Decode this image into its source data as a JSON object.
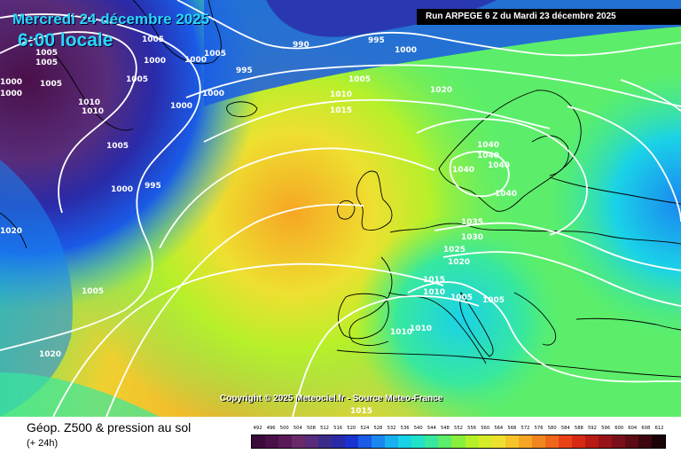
{
  "header": {
    "date": "Mercredi 24 décembre 2025",
    "time": "6:00 locale",
    "run": "Run ARPEGE 6 Z du Mardi 23 décembre 2025"
  },
  "copyright": "Copyright © 2025 Meteociel.fr - Source Meteo-France",
  "legend": {
    "title": "Géop. Z500 & pression au sol",
    "subtitle": "(+ 24h)",
    "scale_values": [
      "492",
      "496",
      "500",
      "504",
      "508",
      "512",
      "516",
      "520",
      "524",
      "528",
      "532",
      "536",
      "540",
      "544",
      "548",
      "552",
      "556",
      "560",
      "564",
      "568",
      "572",
      "576",
      "580",
      "584",
      "588",
      "592",
      "596",
      "600",
      "604",
      "608",
      "612"
    ],
    "scale_colors": [
      "#3a0a3a",
      "#4a1048",
      "#5a1a58",
      "#6a2a6a",
      "#582c7a",
      "#3c2c8a",
      "#2a2aa8",
      "#1a32d0",
      "#1a5ae6",
      "#1a86f0",
      "#1ab0f0",
      "#1ad2e8",
      "#20e2c8",
      "#38e89e",
      "#5cee6a",
      "#88f03a",
      "#b6f02a",
      "#d6ec2a",
      "#eee030",
      "#f6c42a",
      "#f6a624",
      "#f2861e",
      "#ee661a",
      "#e84216",
      "#d62a14",
      "#b81a14",
      "#98121a",
      "#7a0e1a",
      "#5c0a14",
      "#3c060e",
      "#1a0206"
    ]
  },
  "map": {
    "isobar_labels": [
      "990",
      "995",
      "1000",
      "1005",
      "1010",
      "1015",
      "1020",
      "1025",
      "1030",
      "1035",
      "1040"
    ],
    "palette": {
      "deep_low": "#3b1a5a",
      "low": "#2a2aa8",
      "mid_blue": "#1a86f0",
      "cyan": "#1ad2e8",
      "green": "#5cee6a",
      "yellow": "#eee030",
      "orange": "#f6a624",
      "contour": "#ffffff",
      "coast": "#000000"
    }
  }
}
